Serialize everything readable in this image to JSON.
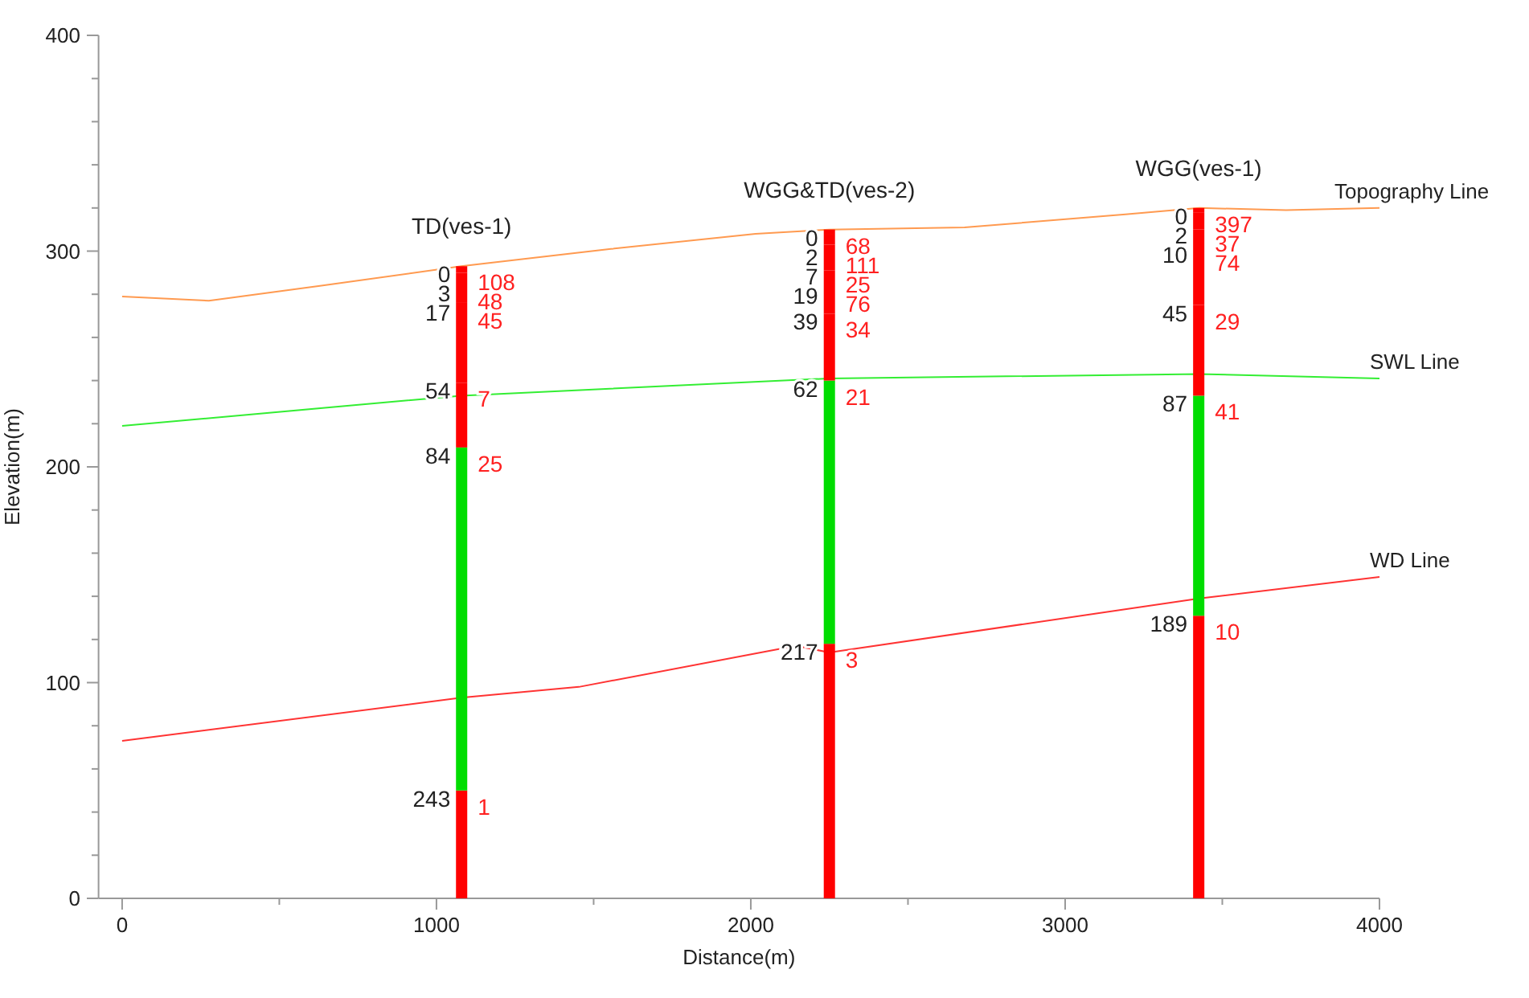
{
  "chart_data": {
    "type": "line",
    "xlabel": "Distance(m)",
    "ylabel": "Elevation(m)",
    "xlim": [
      -75,
      4000
    ],
    "ylim": [
      0,
      400
    ],
    "xticks": [
      0,
      {
        "value": 500,
        "label": null
      },
      1000,
      {
        "value": 1500,
        "label": null
      },
      2000,
      {
        "value": 2500,
        "label": null
      },
      3000,
      {
        "value": 3500,
        "label": null
      },
      4000
    ],
    "yticks": [
      0,
      {
        "value": 20,
        "label": null
      },
      {
        "value": 40,
        "label": null
      },
      {
        "value": 60,
        "label": null
      },
      {
        "value": 80,
        "label": null
      },
      100,
      {
        "value": 120,
        "label": null
      },
      {
        "value": 140,
        "label": null
      },
      {
        "value": 160,
        "label": null
      },
      {
        "value": 180,
        "label": null
      },
      200,
      {
        "value": 220,
        "label": null
      },
      {
        "value": 240,
        "label": null
      },
      {
        "value": 260,
        "label": null
      },
      {
        "value": 280,
        "label": null
      },
      300,
      {
        "value": 320,
        "label": null
      },
      {
        "value": 340,
        "label": null
      },
      {
        "value": 360,
        "label": null
      },
      {
        "value": 380,
        "label": null
      },
      400
    ],
    "series": [
      {
        "name": "Topography Line",
        "color": "#ff9a50",
        "x": [
          0,
          276,
          634,
          1079,
          1555,
          2015,
          2250,
          2680,
          3192,
          3427,
          3703,
          4000
        ],
        "values": [
          279,
          277,
          284,
          293,
          301,
          308,
          310,
          311,
          317,
          320,
          319,
          320
        ]
      },
      {
        "name": "SWL Line",
        "color": "#33ee33",
        "x": [
          0,
          1079,
          2250,
          3427,
          4000
        ],
        "values": [
          219,
          233,
          241,
          243,
          241
        ]
      },
      {
        "name": "WD Line",
        "color": "#ff3333",
        "x": [
          0,
          1079,
          1453,
          2143,
          2250,
          3427,
          4000
        ],
        "values": [
          73,
          93,
          98,
          117,
          114,
          139,
          149
        ]
      },
      {
        "type": "bar",
        "x": [
          1080,
          2250,
          3425
        ],
        "base": [
          0,
          0,
          0
        ],
        "values": [
          50,
          118,
          131
        ],
        "color": "#ff0000"
      },
      {
        "type": "bar",
        "x": [
          1080,
          2250,
          3425
        ],
        "base": [
          50,
          118,
          131
        ],
        "values": [
          159,
          122,
          102
        ],
        "color": "#00dd00"
      },
      {
        "type": "bar",
        "x": [
          1080,
          2250,
          3425
        ],
        "base": [
          209,
          240,
          233
        ],
        "values": [
          30,
          31,
          42
        ],
        "color": "#ff0000"
      },
      {
        "type": "bar",
        "x": [
          1080,
          2250,
          3425
        ],
        "base": [
          239,
          271,
          275
        ],
        "values": [
          37,
          20,
          35
        ],
        "color": "#ff0000"
      },
      {
        "type": "bar",
        "x": [
          1080,
          2250,
          3425
        ],
        "base": [
          276,
          291,
          310
        ],
        "values": [
          14,
          12,
          8
        ],
        "color": "#ff0000"
      },
      {
        "type": "bar",
        "x": [
          1080,
          2250,
          3425
        ],
        "base": [
          290,
          303,
          318
        ],
        "values": [
          3,
          5,
          2
        ],
        "color": "#ff0000"
      },
      {
        "type": "bar",
        "x": [
          2250
        ],
        "base": [
          308
        ],
        "values": [
          2
        ],
        "color": "#ff0000"
      }
    ],
    "annotations": [
      "TD(ves-1)",
      "WGG&TD(ves-2)",
      "WGG(ves-1)",
      {
        "text": "0",
        "x": 1080,
        "y": 293
      },
      {
        "text": "108",
        "x": 1080,
        "y": 293
      },
      {
        "text": "3",
        "x": 1080,
        "y": 290
      },
      {
        "text": "48",
        "x": 1080,
        "y": 290
      },
      {
        "text": "17",
        "x": 1080,
        "y": 276
      },
      {
        "text": "45",
        "x": 1080,
        "y": 276
      },
      {
        "text": "54",
        "x": 1080,
        "y": 239
      },
      {
        "text": "7",
        "x": 1080,
        "y": 239
      },
      {
        "text": "84",
        "x": 1080,
        "y": 209
      },
      {
        "text": "25",
        "x": 1080,
        "y": 209
      },
      {
        "text": "243",
        "x": 1080,
        "y": 50
      },
      {
        "text": "1",
        "x": 1080,
        "y": 50
      },
      {
        "text": "0",
        "x": 2250,
        "y": 310
      },
      {
        "text": "68",
        "x": 2250,
        "y": 310
      },
      {
        "text": "2",
        "x": 2250,
        "y": 308
      },
      {
        "text": "111",
        "x": 2250,
        "y": 308
      },
      {
        "text": "7",
        "x": 2250,
        "y": 303
      },
      {
        "text": "25",
        "x": 2250,
        "y": 303
      },
      {
        "text": "19",
        "x": 2250,
        "y": 291
      },
      {
        "text": "76",
        "x": 2250,
        "y": 291
      },
      {
        "text": "39",
        "x": 2250,
        "y": 271
      },
      {
        "text": "34",
        "x": 2250,
        "y": 271
      },
      {
        "text": "62",
        "x": 2250,
        "y": 240
      },
      {
        "text": "21",
        "x": 2250,
        "y": 240
      },
      {
        "text": "217",
        "x": 2250,
        "y": 118
      },
      {
        "text": "3",
        "x": 2250,
        "y": 118
      },
      {
        "text": "0",
        "x": 3425,
        "y": 320
      },
      {
        "text": "397",
        "x": 3425,
        "y": 320
      },
      {
        "text": "2",
        "x": 3425,
        "y": 318
      },
      {
        "text": "37",
        "x": 3425,
        "y": 318
      },
      {
        "text": "10",
        "x": 3425,
        "y": 310
      },
      {
        "text": "74",
        "x": 3425,
        "y": 310
      },
      {
        "text": "45",
        "x": 3425,
        "y": 275
      },
      {
        "text": "29",
        "x": 3425,
        "y": 275
      },
      {
        "text": "87",
        "x": 3425,
        "y": 233
      },
      {
        "text": "41",
        "x": 3425,
        "y": 233
      },
      {
        "text": "189",
        "x": 3425,
        "y": 131
      },
      {
        "text": "10",
        "x": 3425,
        "y": 131
      }
    ]
  }
}
